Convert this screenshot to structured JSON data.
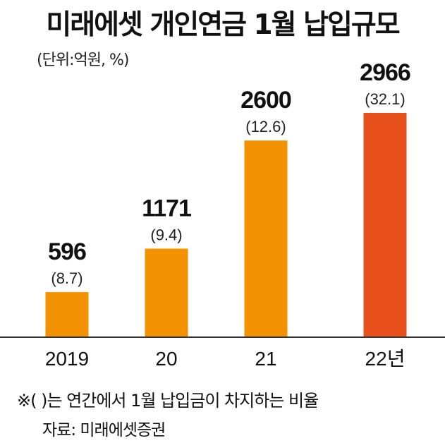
{
  "title": "미래에셋 개인연금 1월 납입규모",
  "unit": "(단위:억원, %)",
  "footnote": "※( )는 연간에서 1월 납입금이 차지하는 비율",
  "source": "자료: 미래에셋증권",
  "colors": {
    "bar": "#F39200",
    "highlight": "#E8501C",
    "axis": "#333333"
  },
  "chart_data": {
    "type": "bar",
    "title": "미래에셋 개인연금 1월 납입규모",
    "categories": [
      "2019",
      "20",
      "21",
      "22년"
    ],
    "values": [
      596,
      1171,
      2600,
      2966
    ],
    "value_labels": [
      "596",
      "1171",
      "2600",
      "2966"
    ],
    "share_labels": [
      "(8.7)",
      "(9.4)",
      "(12.6)",
      "(32.1)"
    ],
    "highlight_index": 3,
    "ylim": [
      0,
      2966
    ],
    "grid": false,
    "legend": "none"
  }
}
